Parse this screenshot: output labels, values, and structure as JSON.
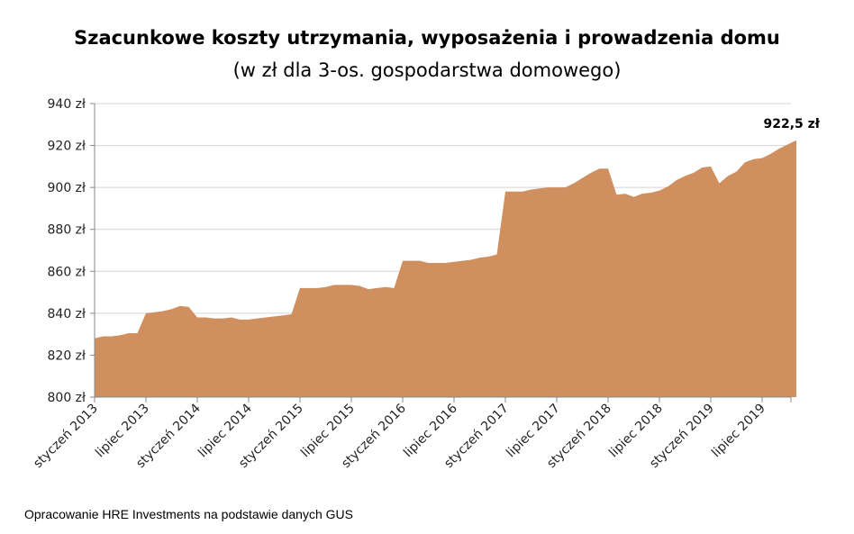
{
  "chart_data": {
    "type": "area",
    "title": "Szacunkowe koszty utrzymania, wyposażenia i prowadzenia domu",
    "subtitle": "(w zł dla 3-os. gospodarstwa domowego)",
    "ylim": [
      800,
      940
    ],
    "yticks": [
      "800 zł",
      "820 zł",
      "840 zł",
      "860 zł",
      "880 zł",
      "900 zł",
      "920 zł",
      "940 zł"
    ],
    "ytick_values": [
      800,
      820,
      840,
      860,
      880,
      900,
      920,
      940
    ],
    "xtick_labels": [
      "styczeń 2013",
      "lipiec 2013",
      "styczeń 2014",
      "lipiec 2014",
      "styczeń 2015",
      "lipiec 2015",
      "styczeń 2016",
      "lipiec 2016",
      "styczeń 2017",
      "lipiec 2017",
      "styczeń 2018",
      "lipiec 2018",
      "styczeń 2019",
      "lipiec 2019"
    ],
    "x_unit": "months from styczeń 2013",
    "series": [
      {
        "color": "#CF8F5E",
        "values": [
          828,
          829,
          829,
          829.5,
          830.5,
          830.5,
          840,
          840.5,
          841,
          842,
          843.5,
          843,
          838,
          838,
          837.5,
          837.5,
          838,
          837,
          837,
          837.5,
          838,
          838.5,
          839,
          839.5,
          852,
          852,
          852,
          852.5,
          853.5,
          853.5,
          853.5,
          853,
          851.5,
          852,
          852.5,
          852,
          865,
          865,
          865,
          864,
          864,
          864,
          864.5,
          865,
          865.5,
          866.5,
          867,
          868,
          898,
          898,
          898,
          899,
          899.5,
          900,
          900,
          900,
          902,
          904.5,
          907,
          909,
          909,
          896.5,
          897,
          895.5,
          897,
          897.5,
          898.5,
          900.5,
          903.5,
          905.5,
          907,
          909.5,
          910,
          902,
          905.5,
          907.5,
          912,
          913.5,
          914,
          916,
          918.5,
          920.5,
          922.5
        ]
      }
    ],
    "annotation": {
      "label": "922,5 zł",
      "value": 922.5
    }
  },
  "source": "Opracowanie HRE Investments na podstawie danych GUS"
}
